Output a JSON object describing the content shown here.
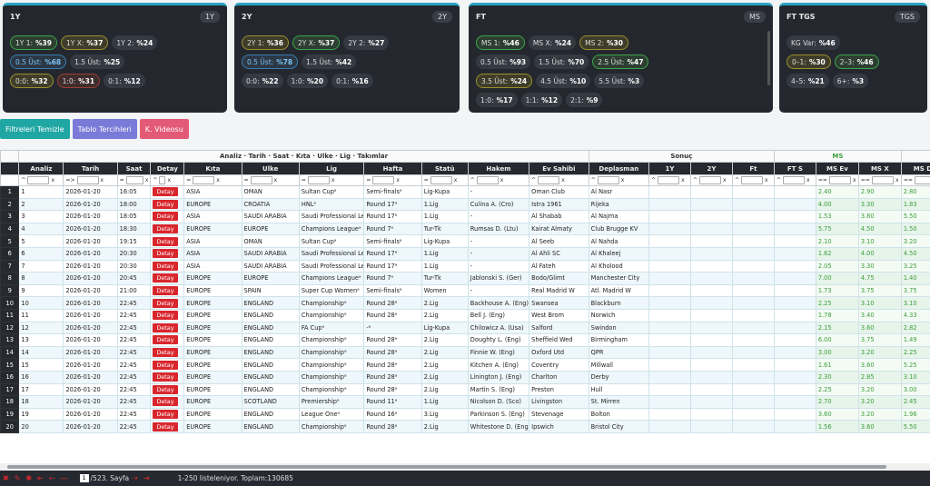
{
  "cards": [
    {
      "title": "1Y",
      "tag": "1Y",
      "rows": [
        [
          {
            "l": "1Y 1:",
            "v": "%39",
            "c": "g"
          },
          {
            "l": "1Y X:",
            "v": "%37",
            "c": "o"
          },
          {
            "l": "1Y 2:",
            "v": "%24",
            "c": ""
          }
        ],
        [
          {
            "l": "0.5 Üst:",
            "v": "%68",
            "c": "b"
          },
          {
            "l": "1.5 Üst:",
            "v": "%25",
            "c": ""
          }
        ],
        [
          {
            "l": "0:0:",
            "v": "%32",
            "c": "o"
          },
          {
            "l": "1:0:",
            "v": "%31",
            "c": "r"
          },
          {
            "l": "0:1:",
            "v": "%12",
            "c": ""
          }
        ]
      ]
    },
    {
      "title": "2Y",
      "tag": "2Y",
      "rows": [
        [
          {
            "l": "2Y 1:",
            "v": "%36",
            "c": "o"
          },
          {
            "l": "2Y X:",
            "v": "%37",
            "c": "g"
          },
          {
            "l": "2Y 2:",
            "v": "%27",
            "c": ""
          }
        ],
        [
          {
            "l": "0.5 Üst:",
            "v": "%78",
            "c": "b"
          },
          {
            "l": "1.5 Üst:",
            "v": "%42",
            "c": ""
          }
        ],
        [
          {
            "l": "0:0:",
            "v": "%22",
            "c": ""
          },
          {
            "l": "1:0:",
            "v": "%20",
            "c": ""
          },
          {
            "l": "0:1:",
            "v": "%16",
            "c": ""
          }
        ]
      ]
    },
    {
      "title": "FT",
      "tag": "MS",
      "rows": [
        [
          {
            "l": "MS 1:",
            "v": "%46",
            "c": "g"
          },
          {
            "l": "MS X:",
            "v": "%24",
            "c": ""
          },
          {
            "l": "MS 2:",
            "v": "%30",
            "c": "o"
          }
        ],
        [
          {
            "l": "0.5 Üst:",
            "v": "%93",
            "c": ""
          },
          {
            "l": "1.5 Üst:",
            "v": "%70",
            "c": ""
          },
          {
            "l": "2.5 Üst:",
            "v": "%47",
            "c": "g"
          }
        ],
        [
          {
            "l": "3.5 Üst:",
            "v": "%24",
            "c": "o"
          },
          {
            "l": "4.5 Üst:",
            "v": "%10",
            "c": ""
          },
          {
            "l": "5.5 Üst:",
            "v": "%3",
            "c": ""
          }
        ],
        [
          {
            "l": "1:0:",
            "v": "%17",
            "c": ""
          },
          {
            "l": "1:1:",
            "v": "%12",
            "c": ""
          },
          {
            "l": "2:1:",
            "v": "%9",
            "c": ""
          }
        ]
      ]
    },
    {
      "title": "FT TGS",
      "tag": "TGS",
      "rows": [
        [
          {
            "l": "KG Var:",
            "v": "%46",
            "c": ""
          }
        ],
        [
          {
            "l": "0–1:",
            "v": "%30",
            "c": "o"
          },
          {
            "l": "2–3:",
            "v": "%46",
            "c": "g"
          }
        ],
        [
          {
            "l": "4–5:",
            "v": "%21",
            "c": ""
          },
          {
            "l": "6+:",
            "v": "%3",
            "c": ""
          }
        ]
      ]
    }
  ],
  "buttons": {
    "clear": "Filtreleri Temizle",
    "prefs": "Tablo Tercihleri",
    "video": "K. Videosu"
  },
  "header": {
    "group_main": "Analiz · Tarih · Saat · Kıta · Ulke · Lig · Takımlar",
    "group_result": "Sonuç",
    "group_ms": "MS",
    "cols": [
      "Analiz",
      "Tarih",
      "Saat",
      "Detay",
      "Kıta",
      "Ulke",
      "Lig",
      "Hafta",
      "Statü",
      "Hakem",
      "Ev Sahibi",
      "Deplasman",
      "1Y",
      "2Y",
      "Ft",
      "FT S",
      "MS Ev",
      "MS X",
      "MS D"
    ],
    "filters": [
      "^",
      "=>",
      "=",
      "^",
      "=",
      "=",
      "=",
      "=",
      "=",
      "^",
      "^",
      "^",
      "^",
      "^",
      "^",
      "^",
      "==",
      "==",
      "=="
    ]
  },
  "detay_label": "Detay",
  "rows": [
    [
      "1",
      "2026-01-20",
      "16:05",
      "ASIA",
      "OMAN",
      "Sultan Cupᵃ",
      "Semi-finalsᵃ",
      "Lig-Kupa",
      "-",
      "Oman Club",
      "Al Nasr",
      "2.40",
      "2.90",
      "2.80"
    ],
    [
      "2",
      "2026-01-20",
      "18:00",
      "EUROPE",
      "CROATIA",
      "HNLᵃ",
      "Round 17ᵃ",
      "1.Lig",
      "Culina A. (Cro)",
      "Istra 1961",
      "Rijeka",
      "4.00",
      "3.30",
      "1.83"
    ],
    [
      "3",
      "2026-01-20",
      "18:05",
      "ASIA",
      "SAUDI ARABIA",
      "Saudi Professional Leagueᵃ",
      "Round 17ᵃ",
      "1.Lig",
      "-",
      "Al Shabab",
      "Al Najma",
      "1.53",
      "3.80",
      "5.50"
    ],
    [
      "4",
      "2026-01-20",
      "18:30",
      "EUROPE",
      "EUROPE",
      "Champions Leagueᵃ",
      "Round 7ᵃ",
      "Tur-Tk",
      "Rumsas D. (Ltu)",
      "Kairat Almaty",
      "Club Brugge KV",
      "5.75",
      "4.50",
      "1.50"
    ],
    [
      "5",
      "2026-01-20",
      "19:15",
      "ASIA",
      "OMAN",
      "Sultan Cupᵃ",
      "Semi-finalsᵃ",
      "Lig-Kupa",
      "-",
      "Al Seeb",
      "Al Nahda",
      "2.10",
      "3.10",
      "3.20"
    ],
    [
      "6",
      "2026-01-20",
      "20:30",
      "ASIA",
      "SAUDI ARABIA",
      "Saudi Professional Leagueᵃ",
      "Round 17ᵃ",
      "1.Lig",
      "-",
      "Al Ahli SC",
      "Al Khaleej",
      "1.62",
      "4.00",
      "4.50"
    ],
    [
      "7",
      "2026-01-20",
      "20:30",
      "ASIA",
      "SAUDI ARABIA",
      "Saudi Professional Leagueᵃ",
      "Round 17ᵃ",
      "1.Lig",
      "-",
      "Al Fateh",
      "Al Kholood",
      "2.05",
      "3.30",
      "3.25"
    ],
    [
      "8",
      "2026-01-20",
      "20:45",
      "EUROPE",
      "EUROPE",
      "Champions Leagueᵃ",
      "Round 7ᵃ",
      "Tur-Tk",
      "Jablonski S. (Ger)",
      "Bodo/Glimt",
      "Manchester City",
      "7.00",
      "4.75",
      "1.40"
    ],
    [
      "9",
      "2026-01-20",
      "21:00",
      "EUROPE",
      "SPAIN",
      "Super Cup Womenᵃ",
      "Semi-finalsᵃ",
      "Women",
      "-",
      "Real Madrid W",
      "Atl. Madrid W",
      "1.73",
      "3.75",
      "3.75"
    ],
    [
      "10",
      "2026-01-20",
      "22:45",
      "EUROPE",
      "ENGLAND",
      "Championshipᵃ",
      "Round 28ᵃ",
      "2.Lig",
      "Backhouse A. (Eng)",
      "Swansea",
      "Blackburn",
      "2.25",
      "3.10",
      "3.10"
    ],
    [
      "11",
      "2026-01-20",
      "22:45",
      "EUROPE",
      "ENGLAND",
      "Championshipᵃ",
      "Round 28ᵃ",
      "2.Lig",
      "Bell J. (Eng)",
      "West Brom",
      "Norwich",
      "1.78",
      "3.40",
      "4.33"
    ],
    [
      "12",
      "2026-01-20",
      "22:45",
      "EUROPE",
      "ENGLAND",
      "FA Cupᵃ",
      "-ᵃ",
      "Lig-Kupa",
      "Chilowicz A. (Usa)",
      "Salford",
      "Swindon",
      "2.15",
      "3.60",
      "2.82"
    ],
    [
      "13",
      "2026-01-20",
      "22:45",
      "EUROPE",
      "ENGLAND",
      "Championshipᵃ",
      "Round 28ᵃ",
      "2.Lig",
      "Doughty L. (Eng)",
      "Sheffield Wed",
      "Birmingham",
      "6.00",
      "3.75",
      "1.49"
    ],
    [
      "14",
      "2026-01-20",
      "22:45",
      "EUROPE",
      "ENGLAND",
      "Championshipᵃ",
      "Round 28ᵃ",
      "2.Lig",
      "Finnie W. (Eng)",
      "Oxford Utd",
      "QPR",
      "3.00",
      "3.20",
      "2.25"
    ],
    [
      "15",
      "2026-01-20",
      "22:45",
      "EUROPE",
      "ENGLAND",
      "Championshipᵃ",
      "Round 28ᵃ",
      "2.Lig",
      "Kitchen A. (Eng)",
      "Coventry",
      "Millwall",
      "1.61",
      "3.60",
      "5.25"
    ],
    [
      "16",
      "2026-01-20",
      "22:45",
      "EUROPE",
      "ENGLAND",
      "Championshipᵃ",
      "Round 28ᵃ",
      "2.Lig",
      "Linington J. (Eng)",
      "Charlton",
      "Derby",
      "2.30",
      "2.85",
      "3.10"
    ],
    [
      "17",
      "2026-01-20",
      "22:45",
      "EUROPE",
      "ENGLAND",
      "Championshipᵃ",
      "Round 28ᵃ",
      "2.Lig",
      "Martin S. (Eng)",
      "Preston",
      "Hull",
      "2.25",
      "3.20",
      "3.00"
    ],
    [
      "18",
      "2026-01-20",
      "22:45",
      "EUROPE",
      "SCOTLAND",
      "Premiershipᵃ",
      "Round 11ᵃ",
      "1.Lig",
      "Nicolson D. (Sco)",
      "Livingston",
      "St. Mirren",
      "2.70",
      "3.20",
      "2.45"
    ],
    [
      "19",
      "2026-01-20",
      "22:45",
      "EUROPE",
      "ENGLAND",
      "League Oneᵃ",
      "Round 16ᵃ",
      "3.Lig",
      "Parkinson S. (Eng)",
      "Stevenage",
      "Bolton",
      "3.60",
      "3.20",
      "1.96"
    ],
    [
      "20",
      "2026-01-20",
      "22:45",
      "EUROPE",
      "ENGLAND",
      "Championshipᵃ",
      "Round 28ᵃ",
      "2.Lig",
      "Whitestone D. (Eng)",
      "Ipswich",
      "Bristol City",
      "1.56",
      "3.60",
      "5.50"
    ]
  ],
  "footer": {
    "page": "1",
    "page_total": "/523. Sayfa",
    "info": "1-250 listeleniyor. Toplam:130685"
  }
}
